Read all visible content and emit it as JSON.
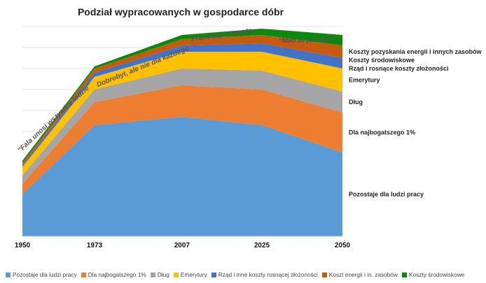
{
  "chart_data": {
    "type": "area",
    "stacked": true,
    "title": "Podział wypracowanych w gospodarce dóbr",
    "x": [
      "1950",
      "1973",
      "2007",
      "2025",
      "2050"
    ],
    "ylim": [
      0,
      100
    ],
    "grid": true,
    "series": [
      {
        "name": "Pozostaje dla ludzi pracy",
        "label": "Pozostaje dla ludzi pracy",
        "color": "#5B9BD5",
        "values": [
          20,
          53,
          57,
          53,
          40
        ]
      },
      {
        "name": "Dla najbogatszego 1%",
        "label": "Dla najbogatszego 1%",
        "color": "#ED7D31",
        "values": [
          5,
          11,
          15,
          17,
          19
        ]
      },
      {
        "name": "Dług",
        "label": "Dług",
        "color": "#A5A5A5",
        "values": [
          4,
          6,
          8,
          9,
          10
        ]
      },
      {
        "name": "Emerytury",
        "label": "Emerytury",
        "color": "#FFC000",
        "values": [
          4,
          6,
          8,
          9,
          11
        ]
      },
      {
        "name": "Rząd i inne koszty rosnącej złożoności",
        "label": "Rząd i rosnące koszty złożoności",
        "color": "#4472C4",
        "values": [
          1,
          2,
          3,
          4,
          5
        ]
      },
      {
        "name": "Koszt  energii i in. zasobów",
        "label": "Koszty pozyskania energii i innych zasobów",
        "color": "#C55A11",
        "values": [
          1,
          2,
          3,
          4,
          6
        ]
      },
      {
        "name": "Koszty środowiskowe",
        "label": "Koszty środowiskowe",
        "color": "#0A8A0A",
        "values": [
          1,
          1,
          2,
          3,
          5
        ]
      }
    ],
    "annotations": [
      "\"Fala unosi wszystkie łodzie\"",
      "Dobrobyt, ale nie dla każdego",
      "Frustracja narasta...",
      "\"Miło to już było...\""
    ],
    "right_labels": [
      "Koszty pozyskania energii i innych zasobów",
      "Koszty środowiskowe",
      "Rząd i rosnące koszty złożoności",
      "Emerytury",
      "Dług",
      "Dla najbogatszego 1%",
      "Pozostaje dla ludzi pracy"
    ]
  }
}
